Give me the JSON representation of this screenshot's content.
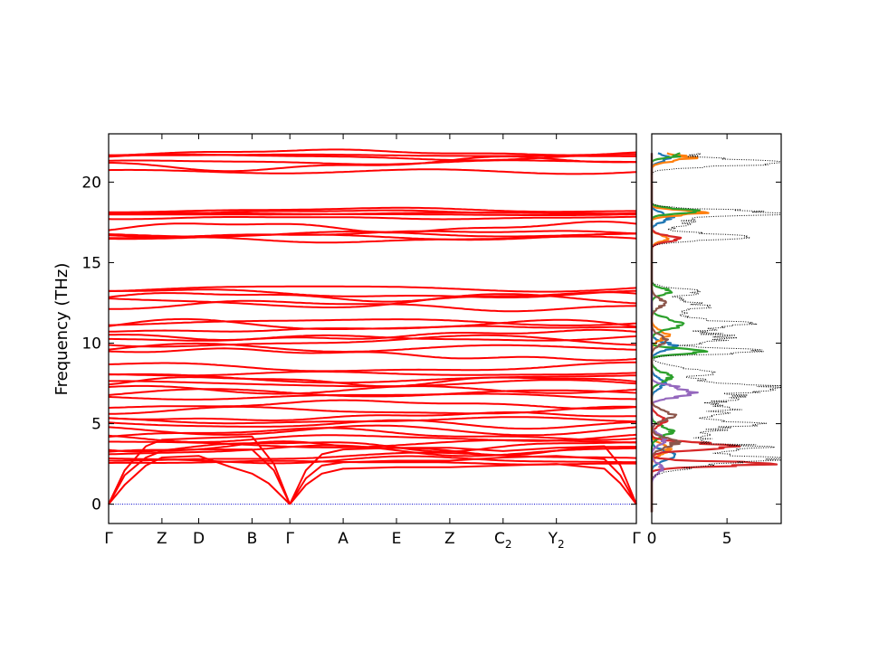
{
  "chart_data": [
    {
      "type": "line",
      "subtype": "phonon-band-structure",
      "title": "",
      "xlabel": "",
      "ylabel": "Frequency (THz)",
      "ylim": [
        -1.2,
        23
      ],
      "yticks": [
        0,
        5,
        10,
        15,
        20
      ],
      "ytick_labels": [
        "0",
        "5",
        "10",
        "15",
        "20"
      ],
      "grid": false,
      "band_color": "#ff0000",
      "zero_line_color": "#0000cc",
      "kpath": [
        {
          "label": "Γ",
          "sub": "",
          "x": 0
        },
        {
          "label": "Z",
          "sub": "",
          "x": 1
        },
        {
          "label": "D",
          "sub": "",
          "x": 1.69
        },
        {
          "label": "B",
          "sub": "",
          "x": 2.69
        },
        {
          "label": "Γ",
          "sub": "",
          "x": 3.4
        },
        {
          "label": "A",
          "sub": "",
          "x": 4.4
        },
        {
          "label": "E",
          "sub": "",
          "x": 5.4
        },
        {
          "label": "Z",
          "sub": "",
          "x": 6.4
        },
        {
          "label": "C",
          "sub": "2",
          "x": 7.4
        },
        {
          "label": "Y",
          "sub": "2",
          "x": 8.4
        },
        {
          "label": "Γ",
          "sub": "",
          "x": 9.9
        }
      ],
      "acoustic_branches": [
        {
          "name": "",
          "x": [
            0,
            0.3,
            0.7,
            1.0,
            1.69,
            2.3,
            2.69,
            3.0,
            3.4
          ],
          "y": [
            0,
            1.2,
            2.4,
            2.9,
            3.0,
            2.3,
            1.9,
            1.3,
            0
          ]
        },
        {
          "name": "",
          "x": [
            0,
            0.3,
            0.7,
            1.0,
            1.69,
            2.69,
            3.1,
            3.4
          ],
          "y": [
            0,
            1.8,
            2.9,
            3.3,
            3.4,
            3.4,
            2.1,
            0
          ]
        },
        {
          "name": "",
          "x": [
            0,
            0.3,
            0.7,
            1.0,
            1.69,
            2.69,
            3.1,
            3.4
          ],
          "y": [
            0,
            2.1,
            3.6,
            4.0,
            4.1,
            4.2,
            2.5,
            0
          ]
        },
        {
          "name": "",
          "x": [
            3.4,
            3.7,
            4.0,
            4.4,
            5.4,
            6.4,
            7.4,
            8.4,
            9.3,
            9.6,
            9.9
          ],
          "y": [
            0,
            1.2,
            1.9,
            2.2,
            2.3,
            2.3,
            2.4,
            2.5,
            2.2,
            1.3,
            0
          ]
        },
        {
          "name": "",
          "x": [
            3.4,
            3.7,
            4.0,
            4.4,
            5.4,
            6.4,
            7.4,
            8.4,
            9.3,
            9.6,
            9.9
          ],
          "y": [
            0,
            1.6,
            2.4,
            2.6,
            2.7,
            2.7,
            2.9,
            3.0,
            2.8,
            1.8,
            0
          ]
        },
        {
          "name": "",
          "x": [
            3.4,
            3.7,
            4.0,
            4.4,
            5.4,
            6.4,
            7.4,
            8.4,
            9.3,
            9.6,
            9.9
          ],
          "y": [
            0,
            2.1,
            3.1,
            3.4,
            3.5,
            3.5,
            3.3,
            3.5,
            3.6,
            2.4,
            0
          ]
        }
      ],
      "optical_band_groups": [
        {
          "center": 2.75,
          "count": 3,
          "spread": 0.22
        },
        {
          "center": 3.55,
          "count": 4,
          "spread": 0.28
        },
        {
          "center": 4.35,
          "count": 3,
          "spread": 0.3
        },
        {
          "center": 5.2,
          "count": 3,
          "spread": 0.3
        },
        {
          "center": 6.0,
          "count": 2,
          "spread": 0.25
        },
        {
          "center": 6.9,
          "count": 3,
          "spread": 0.25
        },
        {
          "center": 7.65,
          "count": 3,
          "spread": 0.22
        },
        {
          "center": 8.3,
          "count": 2,
          "spread": 0.25
        },
        {
          "center": 9.5,
          "count": 2,
          "spread": 0.25
        },
        {
          "center": 10.3,
          "count": 3,
          "spread": 0.25
        },
        {
          "center": 11.1,
          "count": 3,
          "spread": 0.28
        },
        {
          "center": 12.6,
          "count": 3,
          "spread": 0.35
        },
        {
          "center": 13.25,
          "count": 2,
          "spread": 0.2
        },
        {
          "center": 16.6,
          "count": 3,
          "spread": 0.2
        },
        {
          "center": 17.0,
          "count": 2,
          "spread": 0.25
        },
        {
          "center": 17.9,
          "count": 2,
          "spread": 0.15
        },
        {
          "center": 18.15,
          "count": 3,
          "spread": 0.15
        },
        {
          "center": 20.9,
          "count": 2,
          "spread": 0.3
        },
        {
          "center": 21.4,
          "count": 2,
          "spread": 0.2
        },
        {
          "center": 21.75,
          "count": 2,
          "spread": 0.12
        }
      ]
    },
    {
      "type": "line",
      "subtype": "phonon-dos",
      "title": "",
      "xlabel": "",
      "ylabel": "",
      "xlim": [
        0,
        8.6
      ],
      "ylim": [
        -1.2,
        23
      ],
      "xticks": [
        0,
        5
      ],
      "xtick_labels": [
        "0",
        "5"
      ],
      "total_color": "#000000",
      "total_style": "dotted",
      "total_peaks": [
        {
          "f": 2.8,
          "h": 8.6,
          "w": 0.22
        },
        {
          "f": 3.5,
          "h": 7.6,
          "w": 0.22
        },
        {
          "f": 2.3,
          "h": 2.2,
          "w": 0.25
        },
        {
          "f": 4.3,
          "h": 4.1,
          "w": 0.3
        },
        {
          "f": 5.0,
          "h": 5.9,
          "w": 0.25
        },
        {
          "f": 5.8,
          "h": 4.7,
          "w": 0.3
        },
        {
          "f": 6.6,
          "h": 5.6,
          "w": 0.3
        },
        {
          "f": 7.3,
          "h": 7.0,
          "w": 0.3
        },
        {
          "f": 8.2,
          "h": 3.4,
          "w": 0.3
        },
        {
          "f": 9.5,
          "h": 8.6,
          "w": 0.15
        },
        {
          "f": 10.3,
          "h": 5.2,
          "w": 0.3
        },
        {
          "f": 11.2,
          "h": 5.6,
          "w": 0.3
        },
        {
          "f": 12.3,
          "h": 3.4,
          "w": 0.35
        },
        {
          "f": 13.2,
          "h": 3.1,
          "w": 0.2
        },
        {
          "f": 16.6,
          "h": 6.1,
          "w": 0.2
        },
        {
          "f": 17.5,
          "h": 2.5,
          "w": 0.3
        },
        {
          "f": 18.1,
          "h": 8.6,
          "w": 0.18
        },
        {
          "f": 21.2,
          "h": 8.6,
          "w": 0.2
        },
        {
          "f": 21.8,
          "h": 3.2,
          "w": 0.2
        }
      ],
      "partials": [
        {
          "color": "#1f77b4",
          "peaks": [
            {
              "f": 3.0,
              "h": 1.4,
              "w": 0.3
            },
            {
              "f": 9.8,
              "h": 1.5,
              "w": 0.25
            },
            {
              "f": 7.5,
              "h": 0.8,
              "w": 0.3
            },
            {
              "f": 17.8,
              "h": 1.3,
              "w": 0.25
            },
            {
              "f": 21.5,
              "h": 1.2,
              "w": 0.2
            }
          ]
        },
        {
          "color": "#ff7f0e",
          "peaks": [
            {
              "f": 3.4,
              "h": 1.1,
              "w": 0.3
            },
            {
              "f": 10.5,
              "h": 1.0,
              "w": 0.3
            },
            {
              "f": 18.1,
              "h": 3.4,
              "w": 0.15
            },
            {
              "f": 21.5,
              "h": 2.6,
              "w": 0.2
            },
            {
              "f": 16.5,
              "h": 1.0,
              "w": 0.2
            }
          ]
        },
        {
          "color": "#2ca02c",
          "peaks": [
            {
              "f": 4.5,
              "h": 1.3,
              "w": 0.3
            },
            {
              "f": 9.5,
              "h": 3.6,
              "w": 0.15
            },
            {
              "f": 11.2,
              "h": 2.0,
              "w": 0.3
            },
            {
              "f": 13.2,
              "h": 1.3,
              "w": 0.2
            },
            {
              "f": 18.2,
              "h": 2.8,
              "w": 0.15
            },
            {
              "f": 21.7,
              "h": 2.0,
              "w": 0.15
            },
            {
              "f": 7.9,
              "h": 1.2,
              "w": 0.3
            }
          ]
        },
        {
          "color": "#d62728",
          "peaks": [
            {
              "f": 2.5,
              "h": 7.3,
              "w": 0.15
            },
            {
              "f": 3.6,
              "h": 5.5,
              "w": 0.2
            },
            {
              "f": 16.5,
              "h": 1.6,
              "w": 0.2
            },
            {
              "f": 5.2,
              "h": 0.9,
              "w": 0.3
            }
          ]
        },
        {
          "color": "#9467bd",
          "peaks": [
            {
              "f": 6.8,
              "h": 2.2,
              "w": 0.2
            },
            {
              "f": 7.2,
              "h": 1.7,
              "w": 0.2
            },
            {
              "f": 2.2,
              "h": 0.7,
              "w": 0.3
            },
            {
              "f": 4.0,
              "h": 0.9,
              "w": 0.3
            }
          ]
        },
        {
          "color": "#8c564b",
          "peaks": [
            {
              "f": 3.8,
              "h": 1.6,
              "w": 0.3
            },
            {
              "f": 5.5,
              "h": 1.4,
              "w": 0.3
            },
            {
              "f": 10.2,
              "h": 0.9,
              "w": 0.3
            },
            {
              "f": 12.5,
              "h": 0.8,
              "w": 0.3
            }
          ]
        }
      ]
    }
  ]
}
